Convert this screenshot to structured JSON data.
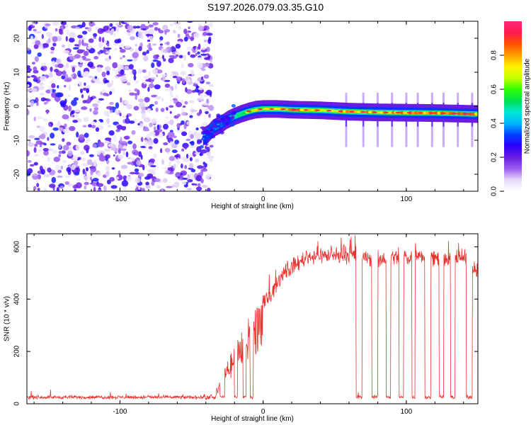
{
  "title": "S197.2026.079.03.35.G10",
  "colors": {
    "snr_line": "#e8322e",
    "axis": "#000000",
    "spec_low": "#8a2be2",
    "spec_high": "#ff2a2a"
  },
  "chart_data": [
    {
      "type": "heatmap",
      "title": "",
      "xlabel": "Height of straight line (km)",
      "ylabel": "Frequency (Hz)",
      "xlim": [
        -165,
        150
      ],
      "ylim": [
        -25,
        25
      ],
      "xticks": [
        -100,
        0,
        100
      ],
      "yticks": [
        -20,
        -10,
        0,
        10,
        20
      ],
      "colorbar": {
        "label": "Normalized spectral amplitude",
        "range": [
          0,
          1
        ],
        "ticks": [
          "0.0",
          "0.2",
          "0.4",
          "0.6",
          "0.8"
        ],
        "tick_values": [
          0.0,
          0.2,
          0.4,
          0.6,
          0.8
        ],
        "colors": [
          "#ffffff",
          "#e6d9f7",
          "#9a5cf0",
          "#6a1de0",
          "#2c00ff",
          "#0040ff",
          "#00b8ff",
          "#00e8d0",
          "#00e050",
          "#30ff00",
          "#c8ff00",
          "#fff000",
          "#ffa000",
          "#ff5000",
          "#ff1a50",
          "#ff2a7a"
        ]
      },
      "noise_region_x": [
        -165,
        -40
      ],
      "tone_track": {
        "height_km": [
          -42,
          -38,
          -35,
          -30,
          -25,
          -20,
          -15,
          -10,
          -5,
          0,
          10,
          20,
          40,
          60,
          80,
          100,
          120,
          140,
          150
        ],
        "frequency_hz": [
          -9,
          -8,
          -6.5,
          -5.5,
          -4,
          -3,
          -2.2,
          -1.5,
          -1,
          -0.8,
          -0.8,
          -1,
          -1.2,
          -1.6,
          -1.8,
          -1.9,
          -2,
          -2.2,
          -2.3
        ],
        "amplitude": [
          0.35,
          0.3,
          0.4,
          0.35,
          0.45,
          0.5,
          0.6,
          0.7,
          0.75,
          0.75,
          0.8,
          0.85,
          0.75,
          0.8,
          0.85,
          0.85,
          0.85,
          0.9,
          0.8
        ]
      },
      "dropout_heights_km": [
        58,
        70,
        80,
        90,
        100,
        108,
        118,
        126,
        136,
        146
      ]
    },
    {
      "type": "line",
      "title": "",
      "xlabel": "Height of straight line (km)",
      "ylabel": "SNR (10 * v/v)",
      "xlim": [
        -165,
        150
      ],
      "ylim": [
        0,
        650
      ],
      "xticks": [
        -100,
        0,
        100
      ],
      "yticks": [
        0,
        200,
        400,
        600
      ],
      "series": [
        {
          "name": "SNR",
          "noise_floor": 25,
          "x": [
            -165,
            -40,
            -35,
            -30,
            -25,
            -20,
            -15,
            -10,
            -5,
            0,
            5,
            10,
            15,
            20,
            25,
            30,
            40,
            50,
            60,
            70,
            80,
            90,
            100,
            110,
            120,
            130,
            140,
            150
          ],
          "y": [
            25,
            25,
            40,
            80,
            150,
            200,
            250,
            300,
            340,
            380,
            420,
            460,
            500,
            520,
            540,
            560,
            570,
            560,
            570,
            560,
            550,
            560,
            560,
            570,
            560,
            550,
            560,
            500
          ]
        }
      ],
      "dropouts": [
        {
          "start": -36,
          "end": -33
        },
        {
          "start": -30,
          "end": -27
        },
        {
          "start": -20,
          "end": -18
        },
        {
          "start": -14,
          "end": -12
        },
        {
          "start": -9,
          "end": -7
        },
        {
          "start": 65,
          "end": 69
        },
        {
          "start": 76,
          "end": 80
        },
        {
          "start": 86,
          "end": 89
        },
        {
          "start": 95,
          "end": 98
        },
        {
          "start": 104,
          "end": 106
        },
        {
          "start": 113,
          "end": 117
        },
        {
          "start": 123,
          "end": 126
        },
        {
          "start": 131,
          "end": 134
        },
        {
          "start": 142,
          "end": 146
        }
      ]
    }
  ]
}
